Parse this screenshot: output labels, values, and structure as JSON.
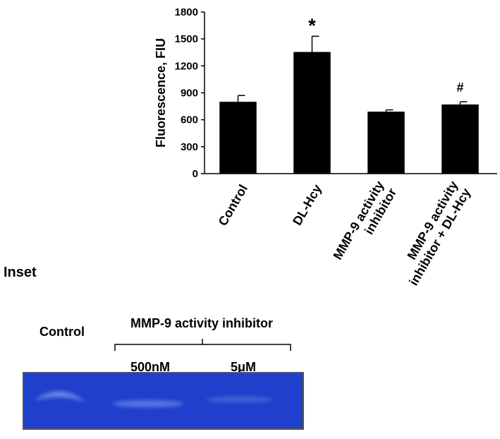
{
  "chart_data": {
    "type": "bar",
    "ylabel": "Fluorescence, FIU",
    "categories": [
      "Control",
      "DL-Hcy",
      "MMP-9 activity\ninhibitor",
      "MMP-9 activity\ninhibitor + DL-Hcy"
    ],
    "values": [
      800,
      1355,
      690,
      770
    ],
    "errors": [
      70,
      175,
      20,
      30
    ],
    "annotations": [
      null,
      "*",
      null,
      "#"
    ],
    "color": "#000000",
    "ylim": [
      0,
      1800
    ],
    "yticks": [
      0,
      300,
      600,
      900,
      1200,
      1500,
      1800
    ],
    "grid": false
  },
  "inset": {
    "title": "Inset",
    "control_label": "Control",
    "group_label": "MMP-9 activity inhibitor",
    "lanes": [
      "500nM",
      "5μM"
    ]
  }
}
